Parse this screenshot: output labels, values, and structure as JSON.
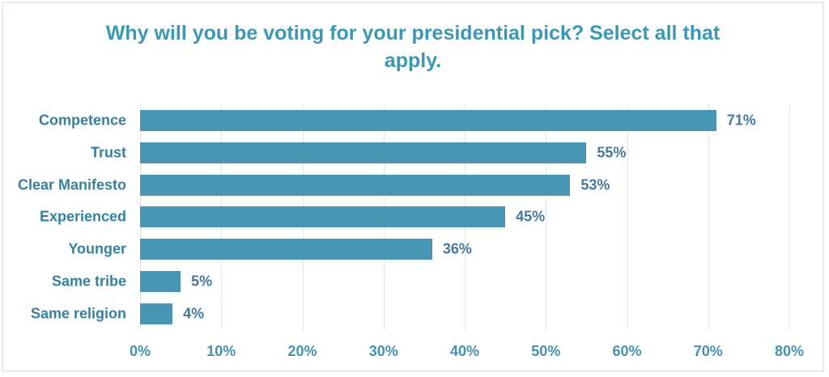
{
  "chart_data": {
    "type": "bar",
    "orientation": "horizontal",
    "title": "Why will you be voting for your presidential pick? Select all that apply.",
    "categories": [
      "Competence",
      "Trust",
      "Clear Manifesto",
      "Experienced",
      "Younger",
      "Same tribe",
      "Same religion"
    ],
    "values": [
      71,
      55,
      53,
      45,
      36,
      5,
      4
    ],
    "value_labels": [
      "71%",
      "55%",
      "53%",
      "45%",
      "36%",
      "5%",
      "4%"
    ],
    "xlabel": "",
    "ylabel": "",
    "xlim": [
      0,
      80
    ],
    "x_ticks": [
      "0%",
      "10%",
      "20%",
      "30%",
      "40%",
      "50%",
      "60%",
      "70%",
      "80%"
    ],
    "x_tick_values": [
      0,
      10,
      20,
      30,
      40,
      50,
      60,
      70,
      80
    ],
    "grid": "vertical-gridlines-on",
    "legend": "none",
    "colors": {
      "bar": "#4696b4",
      "title": "#3a98b4",
      "category_label": "#35809f",
      "value_label": "#44789c",
      "tick_label": "#4493ad",
      "gridline": "#dde8ee",
      "frame_border": "#e3ecf1",
      "background": "#ffffff"
    }
  }
}
